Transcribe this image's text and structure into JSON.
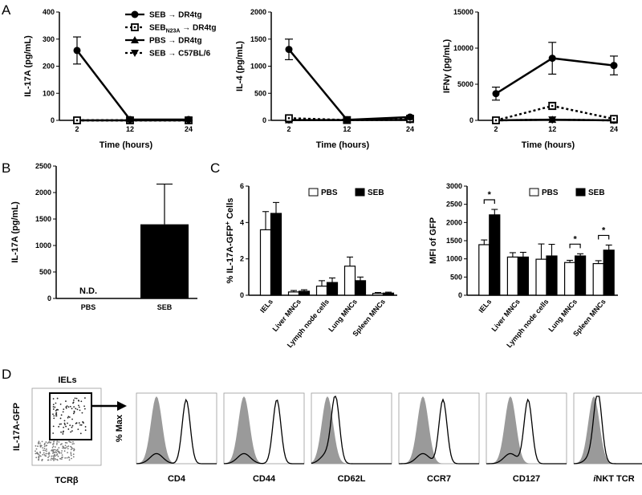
{
  "panels": {
    "A": "A",
    "B": "B",
    "C": "C",
    "D": "D"
  },
  "chart_data": [
    {
      "id": "A1",
      "type": "line",
      "x": [
        2,
        12,
        24
      ],
      "xticks": [
        "2",
        "12",
        "24"
      ],
      "xlabel": "Time (hours)",
      "ylabel": "IL-17A (pg/mL)",
      "ylim": [
        0,
        400
      ],
      "yticks": [
        "0",
        "100",
        "200",
        "300",
        "400"
      ],
      "legend": [
        {
          "name": "SEB → DR4tg",
          "sub": ""
        },
        {
          "name": "SEB",
          "sub": "N23A",
          "suffix": " → DR4tg"
        },
        {
          "name": "PBS → DR4tg",
          "sub": ""
        },
        {
          "name": "SEB → C57BL/6",
          "sub": ""
        }
      ],
      "series": [
        {
          "marker": "circle",
          "line": "solid",
          "values": [
            258,
            3,
            3
          ],
          "err": [
            50,
            0,
            0
          ]
        },
        {
          "marker": "square-open",
          "line": "dotted",
          "values": [
            0,
            0,
            0
          ],
          "err": [
            0,
            0,
            0
          ]
        },
        {
          "marker": "triangle-up",
          "line": "solid",
          "values": [
            0,
            0,
            0
          ],
          "err": [
            0,
            0,
            0
          ]
        },
        {
          "marker": "triangle-down",
          "line": "dotted",
          "values": [
            0,
            0,
            0
          ],
          "err": [
            0,
            0,
            0
          ]
        }
      ]
    },
    {
      "id": "A2",
      "type": "line",
      "x": [
        2,
        12,
        24
      ],
      "xticks": [
        "2",
        "12",
        "24"
      ],
      "xlabel": "Time (hours)",
      "ylabel": "IL-4 (pg/mL)",
      "ylim": [
        0,
        2000
      ],
      "yticks": [
        "0",
        "500",
        "1000",
        "1500",
        "2000"
      ],
      "series": [
        {
          "marker": "circle",
          "line": "solid",
          "values": [
            1310,
            10,
            60
          ],
          "err": [
            190,
            0,
            0
          ]
        },
        {
          "marker": "square-open",
          "line": "dotted",
          "values": [
            40,
            5,
            30
          ],
          "err": [
            0,
            0,
            0
          ]
        },
        {
          "marker": "triangle-up",
          "line": "solid",
          "values": [
            5,
            5,
            10
          ],
          "err": [
            0,
            0,
            0
          ]
        },
        {
          "marker": "triangle-down",
          "line": "dotted",
          "values": [
            5,
            5,
            10
          ],
          "err": [
            0,
            0,
            0
          ]
        }
      ]
    },
    {
      "id": "A3",
      "type": "line",
      "x": [
        2,
        12,
        24
      ],
      "xticks": [
        "2",
        "12",
        "24"
      ],
      "xlabel": "Time (hours)",
      "ylabel": "IFNγ (pg/mL)",
      "ylim": [
        0,
        15000
      ],
      "yticks": [
        "0",
        "5000",
        "10000",
        "15000"
      ],
      "series": [
        {
          "marker": "circle",
          "line": "solid",
          "values": [
            3700,
            8600,
            7600
          ],
          "err": [
            900,
            2200,
            1300
          ]
        },
        {
          "marker": "square-open",
          "line": "dotted",
          "values": [
            0,
            2000,
            200
          ],
          "err": [
            0,
            500,
            0
          ]
        },
        {
          "marker": "triangle-up",
          "line": "solid",
          "values": [
            0,
            100,
            0
          ],
          "err": [
            0,
            0,
            0
          ]
        },
        {
          "marker": "triangle-down",
          "line": "dotted",
          "values": [
            0,
            100,
            0
          ],
          "err": [
            0,
            0,
            0
          ]
        }
      ]
    },
    {
      "id": "B",
      "type": "bar",
      "categories": [
        "PBS",
        "SEB"
      ],
      "values": [
        0,
        1400
      ],
      "err": [
        0,
        760
      ],
      "bar_labels": [
        "N.D.",
        ""
      ],
      "ylabel": "IL-17A (pg/mL)",
      "ylim": [
        0,
        2500
      ],
      "yticks": [
        "0",
        "500",
        "1000",
        "1500",
        "2000",
        "2500"
      ]
    },
    {
      "id": "C1",
      "type": "bar",
      "categories": [
        "IELs",
        "Liver MNCs",
        "Lymph node cells",
        "Lung MNCs",
        "Spleen MNCs"
      ],
      "ylabel": "% IL-17A-GFP",
      "ylabel_sup": "+",
      "ylabel_suffix": " Cells",
      "ylim": [
        0,
        6
      ],
      "yticks": [
        "0",
        "2",
        "4",
        "6"
      ],
      "legend": [
        "PBS",
        "SEB"
      ],
      "series": [
        {
          "name": "PBS",
          "values": [
            3.6,
            0.18,
            0.5,
            1.6,
            0.1
          ],
          "err": [
            1.0,
            0.08,
            0.3,
            0.5,
            0.05
          ]
        },
        {
          "name": "SEB",
          "values": [
            4.5,
            0.22,
            0.7,
            0.8,
            0.12
          ],
          "err": [
            0.6,
            0.08,
            0.25,
            0.2,
            0.05
          ]
        }
      ]
    },
    {
      "id": "C2",
      "type": "bar",
      "categories": [
        "IELs",
        "Liver MNCs",
        "Lymph node cells",
        "Lung MNCs",
        "Spleen MNCs"
      ],
      "ylabel": "MFI of GFP",
      "ylim": [
        0,
        3000
      ],
      "yticks": [
        "0",
        "500",
        "1000",
        "1500",
        "2000",
        "2500",
        "3000"
      ],
      "legend": [
        "PBS",
        "SEB"
      ],
      "significance": [
        0,
        3,
        4
      ],
      "sig_label": "*",
      "series": [
        {
          "name": "PBS",
          "values": [
            1390,
            1050,
            990,
            900,
            870
          ],
          "err": [
            130,
            120,
            420,
            60,
            80
          ]
        },
        {
          "name": "SEB",
          "values": [
            2210,
            1050,
            1080,
            1080,
            1240
          ],
          "err": [
            150,
            130,
            320,
            60,
            140
          ]
        }
      ]
    },
    {
      "id": "D",
      "type": "histogram",
      "gate_title": "IELs",
      "dot_ylabel": "IL-17A-GFP",
      "dot_xlabel": "TCRβ",
      "hist_ylabel": "% Max",
      "markers": [
        "CD4",
        "CD44",
        "CD62L",
        "CCR7",
        "CD127",
        "iNKT TCR"
      ],
      "marker_prefix_italic": [
        "",
        "",
        "",
        "",
        "",
        "i"
      ],
      "marker_rest": [
        "CD4",
        "CD44",
        "CD62L",
        "CCR7",
        "CD127",
        "NKT TCR"
      ],
      "isotype_peak": [
        0.25,
        0.25,
        0.2,
        0.3,
        0.3,
        0.25
      ],
      "stain_peak": [
        0.62,
        0.66,
        0.3,
        0.55,
        0.52,
        0.3
      ]
    }
  ]
}
